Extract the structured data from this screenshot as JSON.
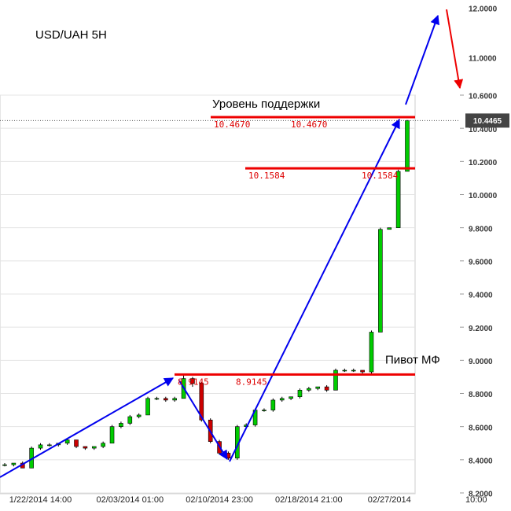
{
  "chart_data": {
    "type": "candlestick",
    "title": "USD/UAH 5H",
    "categories": [
      null,
      null,
      null,
      null,
      "1/22/2014 14:00",
      null,
      null,
      null,
      null,
      null,
      null,
      null,
      null,
      null,
      "02/03/2014 01:00",
      null,
      null,
      null,
      null,
      null,
      null,
      null,
      null,
      null,
      "02/10/2014 23:00",
      null,
      null,
      null,
      null,
      null,
      null,
      null,
      null,
      null,
      "02/18/2014 21:00",
      null,
      null,
      null,
      null,
      null,
      null,
      null,
      null,
      "02/27/2014",
      null,
      null
    ],
    "last_label_tail": "10:00",
    "open": [
      8.37,
      8.37,
      8.38,
      8.35,
      8.47,
      8.49,
      8.49,
      8.5,
      8.52,
      8.48,
      8.47,
      8.48,
      8.5,
      8.6,
      8.62,
      8.66,
      8.67,
      8.77,
      8.77,
      8.76,
      8.77,
      8.89,
      8.86,
      8.64,
      8.51,
      8.44,
      8.41,
      8.6,
      8.61,
      8.7,
      8.7,
      8.76,
      8.77,
      8.78,
      8.82,
      8.83,
      8.84,
      8.82,
      8.94,
      8.94,
      8.94,
      8.93,
      9.17,
      9.79,
      9.8,
      10.14
    ],
    "high": [
      8.38,
      8.38,
      8.39,
      8.48,
      8.5,
      8.5,
      8.5,
      8.53,
      8.52,
      8.48,
      8.48,
      8.51,
      8.61,
      8.63,
      8.67,
      8.68,
      8.78,
      8.78,
      8.78,
      8.78,
      8.91,
      8.9,
      8.87,
      8.65,
      8.52,
      8.45,
      8.61,
      8.62,
      8.71,
      8.71,
      8.77,
      8.78,
      8.78,
      8.83,
      8.84,
      8.84,
      8.85,
      8.95,
      8.95,
      8.95,
      8.94,
      9.18,
      9.8,
      9.8,
      10.15,
      10.45
    ],
    "low": [
      8.36,
      8.36,
      8.35,
      8.35,
      8.46,
      8.48,
      8.48,
      8.49,
      8.47,
      8.46,
      8.46,
      8.47,
      8.5,
      8.59,
      8.61,
      8.65,
      8.67,
      8.76,
      8.75,
      8.75,
      8.77,
      8.84,
      8.63,
      8.5,
      8.43,
      8.4,
      8.4,
      8.59,
      8.6,
      8.69,
      8.69,
      8.75,
      8.76,
      8.77,
      8.81,
      8.82,
      8.81,
      8.82,
      8.93,
      8.93,
      8.92,
      8.92,
      9.17,
      9.79,
      9.8,
      10.14
    ],
    "close": [
      8.37,
      8.38,
      8.35,
      8.47,
      8.49,
      8.49,
      8.5,
      8.52,
      8.48,
      8.47,
      8.48,
      8.5,
      8.6,
      8.62,
      8.66,
      8.67,
      8.77,
      8.77,
      8.76,
      8.77,
      8.89,
      8.86,
      8.64,
      8.51,
      8.44,
      8.41,
      8.6,
      8.61,
      8.7,
      8.7,
      8.76,
      8.77,
      8.78,
      8.82,
      8.83,
      8.84,
      8.82,
      8.94,
      8.94,
      8.94,
      8.93,
      9.17,
      9.79,
      9.8,
      10.14,
      10.4465
    ],
    "up_color": "#00cc00",
    "down_color": "#cc0000",
    "ylim": [
      8.2,
      10.6
    ],
    "yticks": [
      {
        "value": 8.2,
        "label": "8.2000"
      },
      {
        "value": 8.4,
        "label": "8.4000"
      },
      {
        "value": 8.6,
        "label": "8.6000"
      },
      {
        "value": 8.8,
        "label": "8.8000"
      },
      {
        "value": 9.0,
        "label": "9.0000"
      },
      {
        "value": 9.2,
        "label": "9.2000"
      },
      {
        "value": 9.4,
        "label": "9.4000"
      },
      {
        "value": 9.6,
        "label": "9.6000"
      },
      {
        "value": 9.8,
        "label": "9.8000"
      },
      {
        "value": 10.0,
        "label": "10.0000"
      },
      {
        "value": 10.2,
        "label": "10.2000"
      },
      {
        "value": 10.4,
        "label": "10.4000"
      },
      {
        "value": 10.6,
        "label": "10.6000"
      }
    ],
    "extra_axis_labels": [
      "12.0000",
      "11.0000"
    ],
    "current_price": {
      "value": 10.4465,
      "label": "10.4465"
    },
    "levels": [
      {
        "name": "Уровень поддержки",
        "value": 10.467,
        "label": "10.4670"
      },
      {
        "value": 10.1584,
        "label": "10.1584"
      },
      {
        "name": "Пивот МФ",
        "value": 8.9145,
        "label": "8.9145"
      }
    ],
    "level_color": "#ee0000",
    "grid": true
  }
}
